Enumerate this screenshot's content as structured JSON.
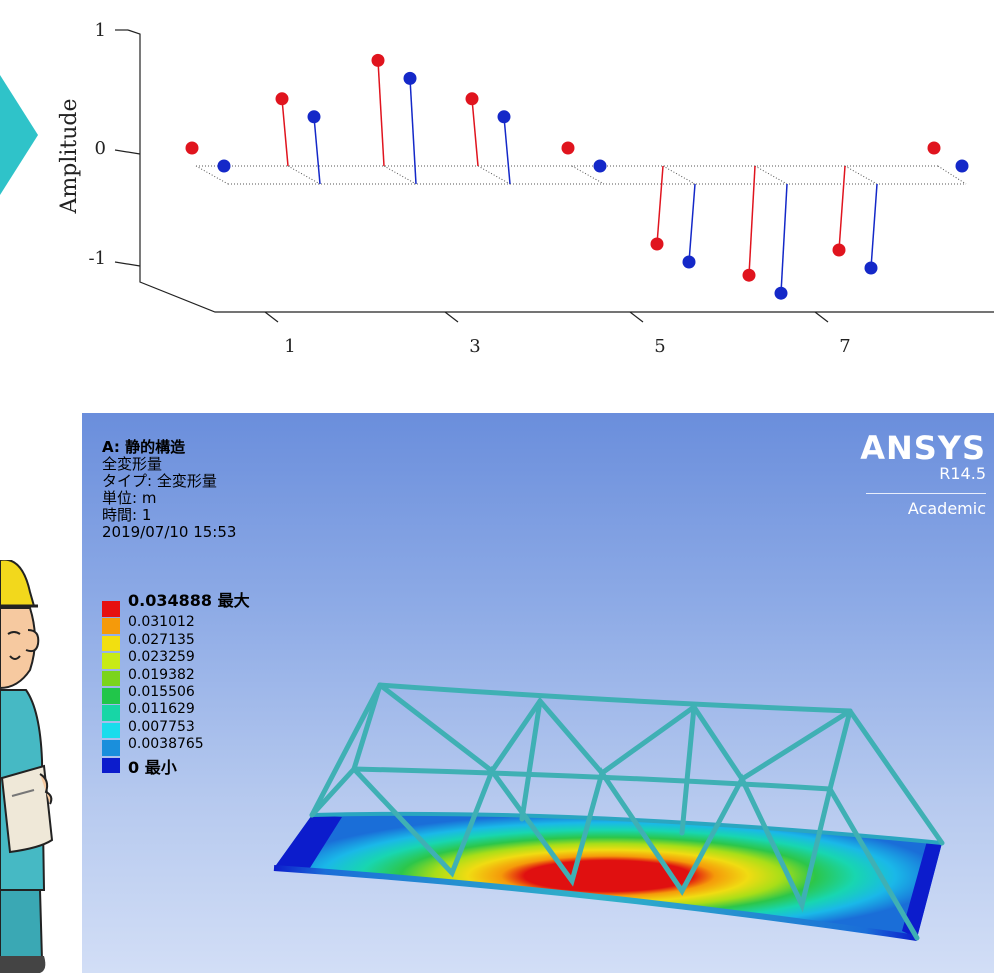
{
  "stem_plot": {
    "ylabel": "Amplitude",
    "yticks": [
      "1",
      "0",
      "-1"
    ],
    "xticks": [
      "1",
      "3",
      "5",
      "7"
    ]
  },
  "chart_data": {
    "type": "scatter",
    "xlabel": "",
    "ylabel": "Amplitude",
    "ylim": [
      -1,
      1
    ],
    "series": [
      {
        "color": "#e0141e",
        "values": [
          0.05,
          0.56,
          0.88,
          0.56,
          0.05,
          -0.65,
          -0.91,
          -0.7,
          0.05
        ]
      },
      {
        "color": "#1428c8",
        "values": [
          0.05,
          0.56,
          0.88,
          0.56,
          0.05,
          -0.65,
          -0.91,
          -0.7,
          0.05
        ]
      }
    ]
  },
  "ansys": {
    "title": "A: 静的構造",
    "result": "全変形量",
    "type_line": "タイプ: 全変形量",
    "unit_line": "単位: m",
    "time_line": "時間: 1",
    "timestamp": "2019/07/10 15:53",
    "logo": "ANSYS",
    "version": "R14.5",
    "edition": "Academic",
    "legend": [
      {
        "label": "0.034888 最大",
        "color": "#e61010"
      },
      {
        "label": "0.031012",
        "color": "#f59a0a"
      },
      {
        "label": "0.027135",
        "color": "#f2df10"
      },
      {
        "label": "0.023259",
        "color": "#c8ea16"
      },
      {
        "label": "0.019382",
        "color": "#7bd41c"
      },
      {
        "label": "0.015506",
        "color": "#21c64a"
      },
      {
        "label": "0.011629",
        "color": "#17d6a6"
      },
      {
        "label": "0.007753",
        "color": "#19dcec"
      },
      {
        "label": "0.0038765",
        "color": "#1a8fdc"
      },
      {
        "label": "0 最小",
        "color": "#0c1ccc"
      }
    ]
  },
  "decor": {
    "arrow_color": "#2fc3c9",
    "icons": [
      "play-arrow-icon",
      "engineer-illustration-icon"
    ]
  }
}
